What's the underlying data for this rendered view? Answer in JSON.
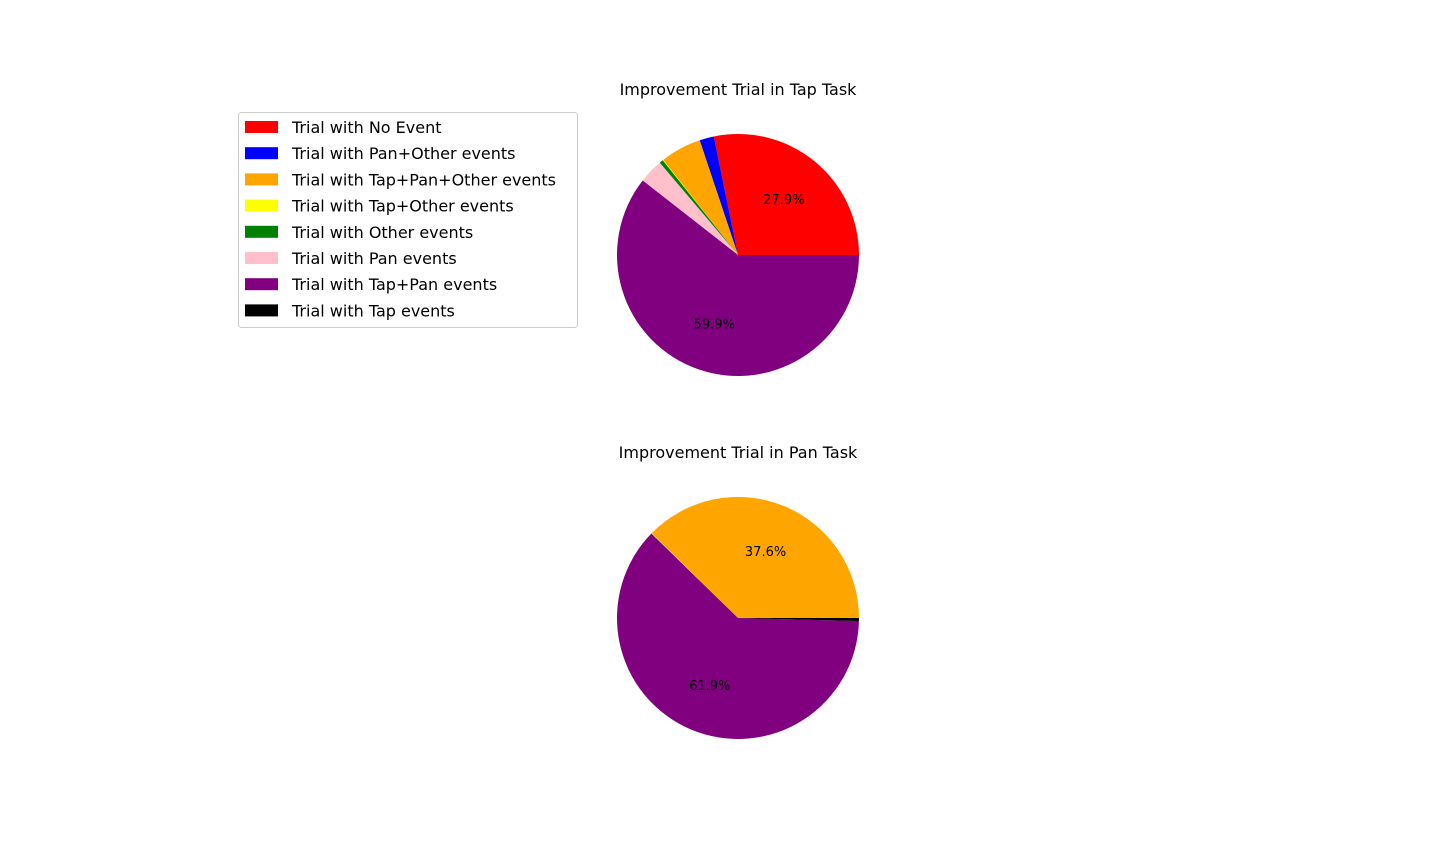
{
  "legend": [
    {
      "label": "Trial with No Event",
      "color": "#ff0000"
    },
    {
      "label": "Trial with Pan+Other events",
      "color": "#0000ff"
    },
    {
      "label": "Trial with Tap+Pan+Other events",
      "color": "#ffa500"
    },
    {
      "label": "Trial with Tap+Other events",
      "color": "#ffff00"
    },
    {
      "label": "Trial with Other events",
      "color": "#008000"
    },
    {
      "label": "Trial with Pan events",
      "color": "#ffc0cb"
    },
    {
      "label": "Trial with Tap+Pan events",
      "color": "#800080"
    },
    {
      "label": "Trial with Tap events",
      "color": "#000000"
    }
  ],
  "chart_data": [
    {
      "type": "pie",
      "title": "Improvement Trial in Tap Task",
      "labels": [
        "Trial with No Event",
        "Trial with Pan+Other events",
        "Trial with Tap+Pan+Other events",
        "Trial with Tap+Other events",
        "Trial with Other events",
        "Trial with Pan events",
        "Trial with Tap+Pan events",
        "Trial with Tap events"
      ],
      "values": [
        27.9,
        1.9,
        5.4,
        0.1,
        0.5,
        3.2,
        59.9,
        0.0
      ],
      "colors": [
        "#ff0000",
        "#0000ff",
        "#ffa500",
        "#ffff00",
        "#008000",
        "#ffc0cb",
        "#800080",
        "#000000"
      ],
      "pct_labels": [
        "27.9%",
        "",
        "",
        "",
        "",
        "",
        "59.9%",
        ""
      ],
      "legend_position": "upper left"
    },
    {
      "type": "pie",
      "title": "Improvement Trial in Pan Task",
      "labels": [
        "Trial with No Event",
        "Trial with Pan+Other events",
        "Trial with Tap+Pan+Other events",
        "Trial with Tap+Other events",
        "Trial with Other events",
        "Trial with Pan events",
        "Trial with Tap+Pan events",
        "Trial with Tap events"
      ],
      "values": [
        0.0,
        0.0,
        37.6,
        0.1,
        0.0,
        0.0,
        61.9,
        0.4
      ],
      "colors": [
        "#ff0000",
        "#0000ff",
        "#ffa500",
        "#ffff00",
        "#008000",
        "#ffc0cb",
        "#800080",
        "#000000"
      ],
      "pct_labels": [
        "",
        "",
        "37.6%",
        "",
        "",
        "",
        "61.9%",
        ""
      ]
    }
  ]
}
